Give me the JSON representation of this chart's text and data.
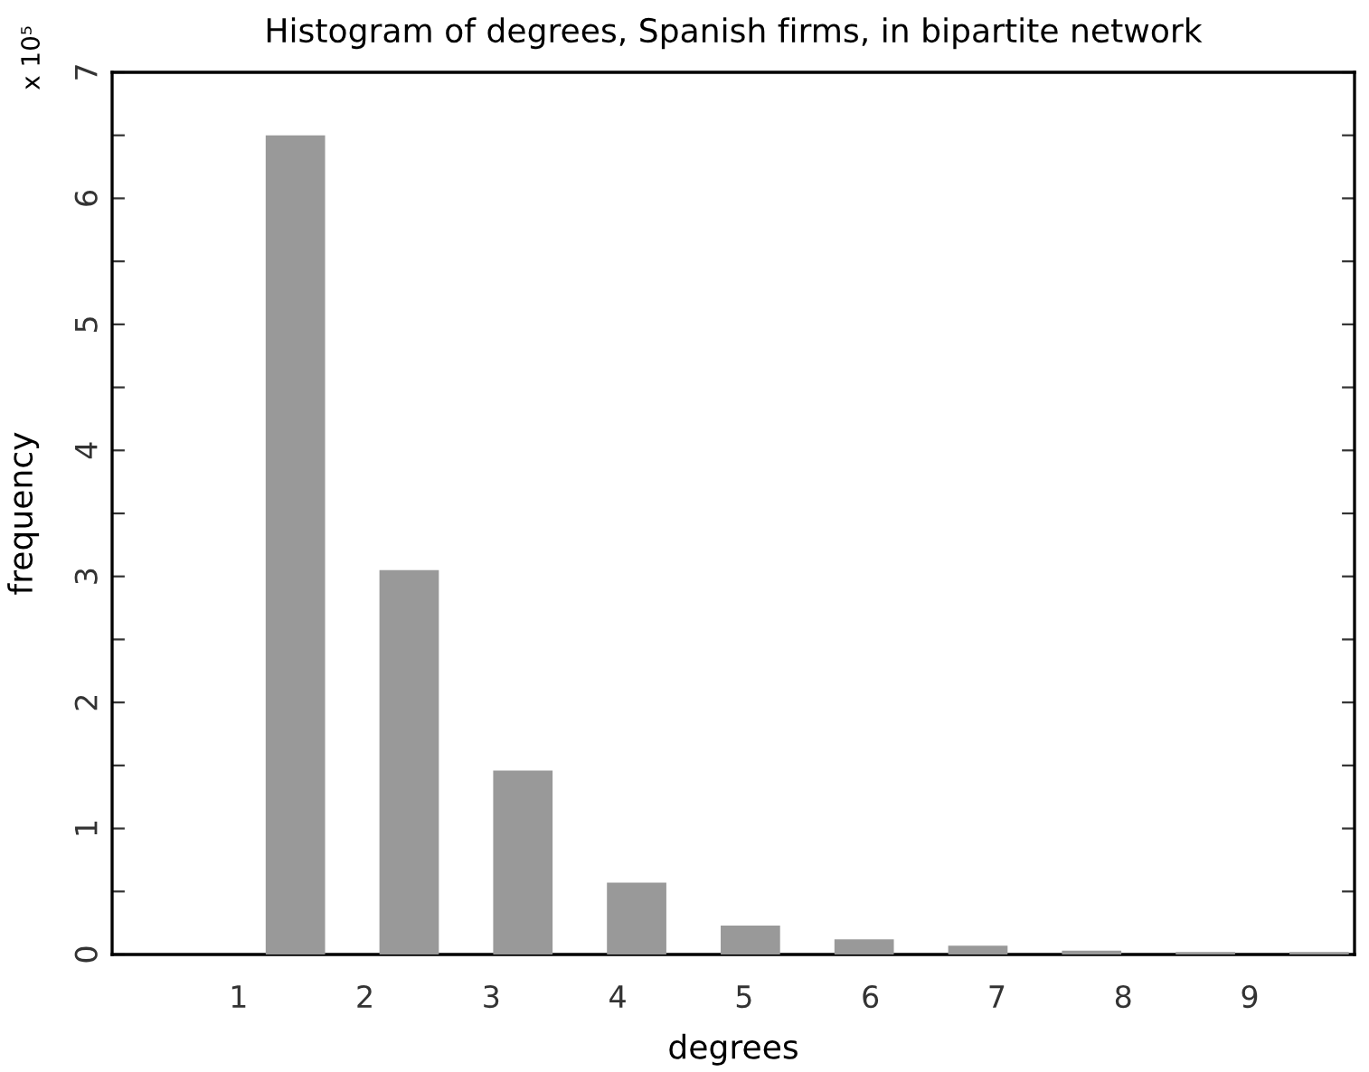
{
  "chart_data": {
    "type": "bar",
    "title": "Histogram of degrees, Spanish firms, in bipartite network",
    "xlabel": "degrees",
    "ylabel": "frequency",
    "annotations": [
      "x 10⁵"
    ],
    "x": [
      1.45,
      2.35,
      3.25,
      4.15,
      5.05,
      5.95,
      6.85,
      7.75,
      8.65,
      9.55
    ],
    "values": [
      6.5,
      3.05,
      1.46,
      0.57,
      0.23,
      0.12,
      0.07,
      0.03,
      0.02,
      0.02
    ],
    "color": "#999999",
    "xlim": [
      0,
      9.83
    ],
    "xticks": [
      1,
      2,
      3,
      4,
      5,
      6,
      7,
      8,
      9
    ],
    "ylim": [
      0,
      7
    ],
    "yticks": [
      0,
      {
        "value": 0.5,
        "label": null
      },
      1,
      {
        "value": 1.5,
        "label": null
      },
      2,
      {
        "value": 2.5,
        "label": null
      },
      3,
      {
        "value": 3.5,
        "label": null
      },
      4,
      {
        "value": 4.5,
        "label": null
      },
      5,
      {
        "value": 5.5,
        "label": null
      },
      6,
      {
        "value": 6.5,
        "label": null
      },
      7
    ],
    "grid": false,
    "legend": false
  }
}
